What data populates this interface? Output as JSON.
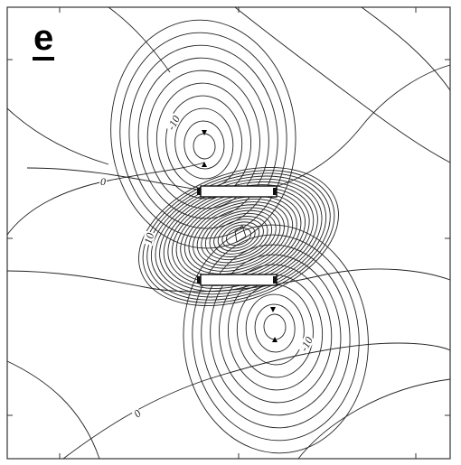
{
  "panel": {
    "letter": "e"
  },
  "contour_labels": {
    "upper_lobe": "-10",
    "left_zero": "0",
    "center_lobe": "10",
    "lower_lobe": "-10",
    "lower_left_zero": "0"
  },
  "colors": {
    "line": "#222222",
    "frame": "#333333",
    "background": "#ffffff"
  }
}
